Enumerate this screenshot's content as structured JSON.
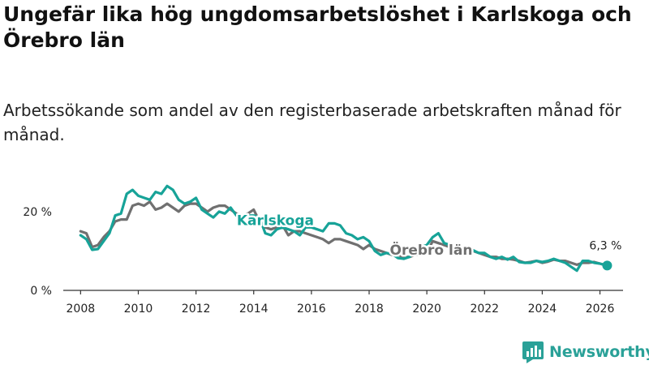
{
  "title": "Ungefär lika hög ungdomsarbetslöshet i Karlskoga och Örebro län",
  "subtitle": "Arbetssökande som andel av den registerbaserade arbetskraften månad för månad.",
  "brand": {
    "name": "Newsworthy",
    "icon": "newsworthy-logo-icon"
  },
  "colors": {
    "karlskoga": "#17a398",
    "orebro": "#707070",
    "axis": "#333333",
    "text": "#222222"
  },
  "chart_data": {
    "type": "line",
    "title": "Ungefär lika hög ungdomsarbetslöshet i Karlskoga och Örebro län",
    "xlabel": "",
    "ylabel": "",
    "xlim": [
      2007.4,
      2026.8
    ],
    "ylim": [
      0,
      28
    ],
    "x_ticks": [
      2008,
      2010,
      2012,
      2014,
      2016,
      2018,
      2020,
      2022,
      2024,
      2026
    ],
    "x_tick_labels": [
      "2008",
      "2010",
      "2012",
      "2014",
      "2016",
      "2018",
      "2020",
      "2022",
      "2024",
      "2026"
    ],
    "y_ticks": [
      0,
      20
    ],
    "y_tick_labels": [
      "0 %",
      "20 %"
    ],
    "grid": false,
    "end_label": "6,3 %",
    "end_point": {
      "x": 2026.25,
      "y": 6.3
    },
    "series": [
      {
        "name": "Karlskoga",
        "color": "#17a398",
        "x": [
          2008.0,
          2008.2,
          2008.4,
          2008.6,
          2008.8,
          2009.0,
          2009.2,
          2009.4,
          2009.6,
          2009.8,
          2010.0,
          2010.2,
          2010.4,
          2010.6,
          2010.8,
          2011.0,
          2011.2,
          2011.4,
          2011.6,
          2011.8,
          2012.0,
          2012.2,
          2012.4,
          2012.6,
          2012.8,
          2013.0,
          2013.2,
          2013.4,
          2013.6,
          2013.8,
          2014.0,
          2014.2,
          2014.4,
          2014.6,
          2014.8,
          2015.0,
          2015.2,
          2015.4,
          2015.6,
          2015.8,
          2016.0,
          2016.2,
          2016.4,
          2016.6,
          2016.8,
          2017.0,
          2017.2,
          2017.4,
          2017.6,
          2017.8,
          2018.0,
          2018.2,
          2018.4,
          2018.6,
          2018.8,
          2019.0,
          2019.2,
          2019.4,
          2019.6,
          2019.8,
          2020.0,
          2020.2,
          2020.4,
          2020.6,
          2020.8,
          2021.0,
          2021.2,
          2021.4,
          2021.6,
          2021.8,
          2022.0,
          2022.2,
          2022.4,
          2022.6,
          2022.8,
          2023.0,
          2023.2,
          2023.4,
          2023.6,
          2023.8,
          2024.0,
          2024.2,
          2024.4,
          2024.6,
          2024.8,
          2025.0,
          2025.2,
          2025.4,
          2025.6,
          2025.8,
          2026.0,
          2026.25
        ],
        "values": [
          14.0,
          13.0,
          10.3,
          10.5,
          12.5,
          14.5,
          19.0,
          19.5,
          24.5,
          25.5,
          24.0,
          23.5,
          23.0,
          25.0,
          24.5,
          26.5,
          25.5,
          23.0,
          22.0,
          22.5,
          23.5,
          20.5,
          19.5,
          18.5,
          20.0,
          19.5,
          21.0,
          19.0,
          18.5,
          19.0,
          19.0,
          18.5,
          14.5,
          14.0,
          15.5,
          16.0,
          15.5,
          15.0,
          14.0,
          16.0,
          16.0,
          15.5,
          15.0,
          17.0,
          17.0,
          16.5,
          14.5,
          14.0,
          13.0,
          13.5,
          12.5,
          10.0,
          9.0,
          9.5,
          9.2,
          8.2,
          8.0,
          8.5,
          10.0,
          11.0,
          11.5,
          13.5,
          14.5,
          12.0,
          11.5,
          10.5,
          11.0,
          10.8,
          10.2,
          9.5,
          9.5,
          8.5,
          8.0,
          8.5,
          7.8,
          8.5,
          7.2,
          7.0,
          7.0,
          7.5,
          7.2,
          7.5,
          8.0,
          7.5,
          7.0,
          6.0,
          5.0,
          7.5,
          7.5,
          7.0,
          6.8,
          6.3
        ]
      },
      {
        "name": "Örebro län",
        "color": "#707070",
        "x": [
          2008.0,
          2008.2,
          2008.4,
          2008.6,
          2008.8,
          2009.0,
          2009.2,
          2009.4,
          2009.6,
          2009.8,
          2010.0,
          2010.2,
          2010.4,
          2010.6,
          2010.8,
          2011.0,
          2011.2,
          2011.4,
          2011.6,
          2011.8,
          2012.0,
          2012.2,
          2012.4,
          2012.6,
          2012.8,
          2013.0,
          2013.2,
          2013.4,
          2013.6,
          2013.8,
          2014.0,
          2014.2,
          2014.4,
          2014.6,
          2014.8,
          2015.0,
          2015.2,
          2015.4,
          2015.6,
          2015.8,
          2016.0,
          2016.2,
          2016.4,
          2016.6,
          2016.8,
          2017.0,
          2017.2,
          2017.4,
          2017.6,
          2017.8,
          2018.0,
          2018.2,
          2018.4,
          2018.6,
          2018.8,
          2019.0,
          2019.2,
          2019.4,
          2019.6,
          2019.8,
          2020.0,
          2020.2,
          2020.4,
          2020.6,
          2020.8,
          2021.0,
          2021.2,
          2021.4,
          2021.6,
          2021.8,
          2022.0,
          2022.2,
          2022.4,
          2022.6,
          2022.8,
          2023.0,
          2023.2,
          2023.4,
          2023.6,
          2023.8,
          2024.0,
          2024.2,
          2024.4,
          2024.6,
          2024.8,
          2025.0,
          2025.2,
          2025.4,
          2025.6,
          2025.8,
          2026.0,
          2026.25
        ],
        "values": [
          15.0,
          14.5,
          11.0,
          11.5,
          13.5,
          15.0,
          17.5,
          18.0,
          18.0,
          21.5,
          22.0,
          21.5,
          22.5,
          20.5,
          21.0,
          22.0,
          21.0,
          20.0,
          21.5,
          22.0,
          22.0,
          21.0,
          20.0,
          21.0,
          21.5,
          21.5,
          20.5,
          19.5,
          19.0,
          19.5,
          20.5,
          17.5,
          16.0,
          15.5,
          16.0,
          16.5,
          14.0,
          15.0,
          15.0,
          14.5,
          14.0,
          13.5,
          13.0,
          12.0,
          13.0,
          13.0,
          12.5,
          12.0,
          11.5,
          10.5,
          11.5,
          10.5,
          10.0,
          9.5,
          9.0,
          9.0,
          8.5,
          8.5,
          9.0,
          9.0,
          9.5,
          12.5,
          12.0,
          11.5,
          11.0,
          10.5,
          10.5,
          10.3,
          10.0,
          9.5,
          9.0,
          8.5,
          8.5,
          8.0,
          8.0,
          7.8,
          7.5,
          7.0,
          7.2,
          7.5,
          7.0,
          7.3,
          7.8,
          7.5,
          7.5,
          7.0,
          6.5,
          7.0,
          7.0,
          7.2,
          6.8,
          6.3
        ]
      }
    ],
    "annotations": [
      {
        "label": "Karlskoga",
        "series": "Karlskoga",
        "x": 2014.75,
        "y": 17.8
      },
      {
        "label": "Örebro län",
        "series": "Örebro län",
        "x": 2020.15,
        "y": 10.3
      }
    ]
  }
}
